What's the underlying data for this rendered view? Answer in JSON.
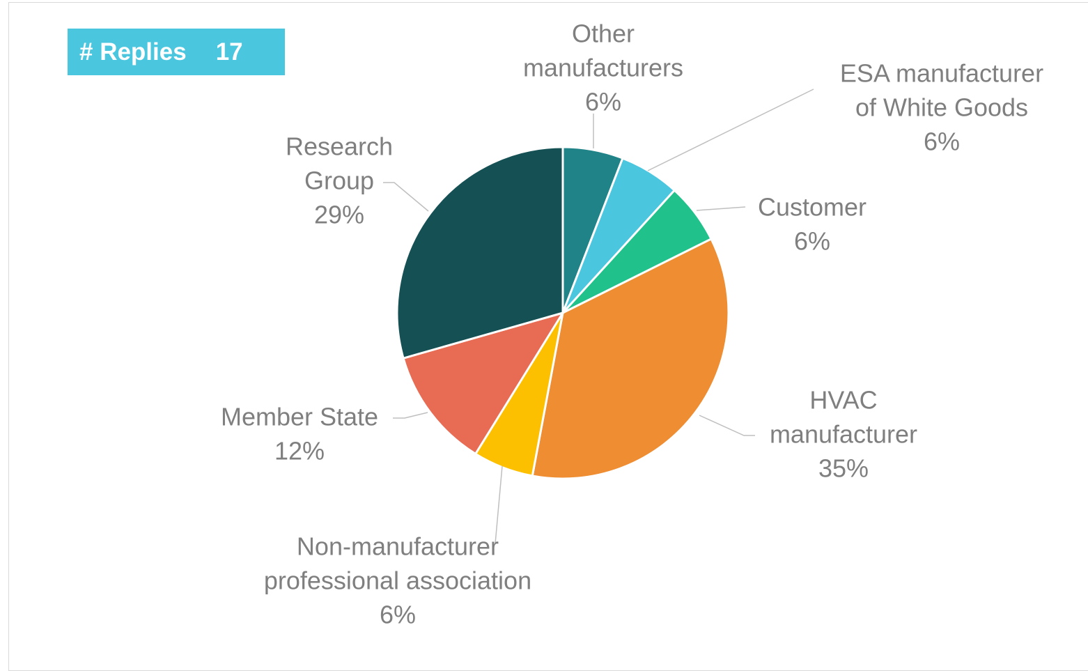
{
  "badge": {
    "title": "# Replies",
    "count": "17"
  },
  "chart_data": {
    "type": "pie",
    "title": "",
    "slices": [
      {
        "label": "Other manufacturers",
        "label_lines": [
          "Other",
          "manufacturers"
        ],
        "value": 1,
        "percent_label": "6%",
        "color": "#1f8388"
      },
      {
        "label": "ESA manufacturer of White Goods",
        "label_lines": [
          "ESA manufacturer",
          "of White Goods"
        ],
        "value": 1,
        "percent_label": "6%",
        "color": "#4bc6df"
      },
      {
        "label": "Customer",
        "label_lines": [
          "Customer"
        ],
        "value": 1,
        "percent_label": "6%",
        "color": "#21c18b"
      },
      {
        "label": "HVAC manufacturer",
        "label_lines": [
          "HVAC",
          "manufacturer"
        ],
        "value": 6,
        "percent_label": "35%",
        "color": "#ee8d31"
      },
      {
        "label": "Non-manufacturer professional association",
        "label_lines": [
          "Non-manufacturer",
          "professional association"
        ],
        "value": 1,
        "percent_label": "6%",
        "color": "#fdc000"
      },
      {
        "label": "Member State",
        "label_lines": [
          "Member State"
        ],
        "value": 2,
        "percent_label": "12%",
        "color": "#e86c54"
      },
      {
        "label": "Research Group",
        "label_lines": [
          "Research",
          "Group"
        ],
        "value": 5,
        "percent_label": "29%",
        "color": "#145054"
      }
    ],
    "legend": "none",
    "data_labels": "outside with leader lines"
  }
}
